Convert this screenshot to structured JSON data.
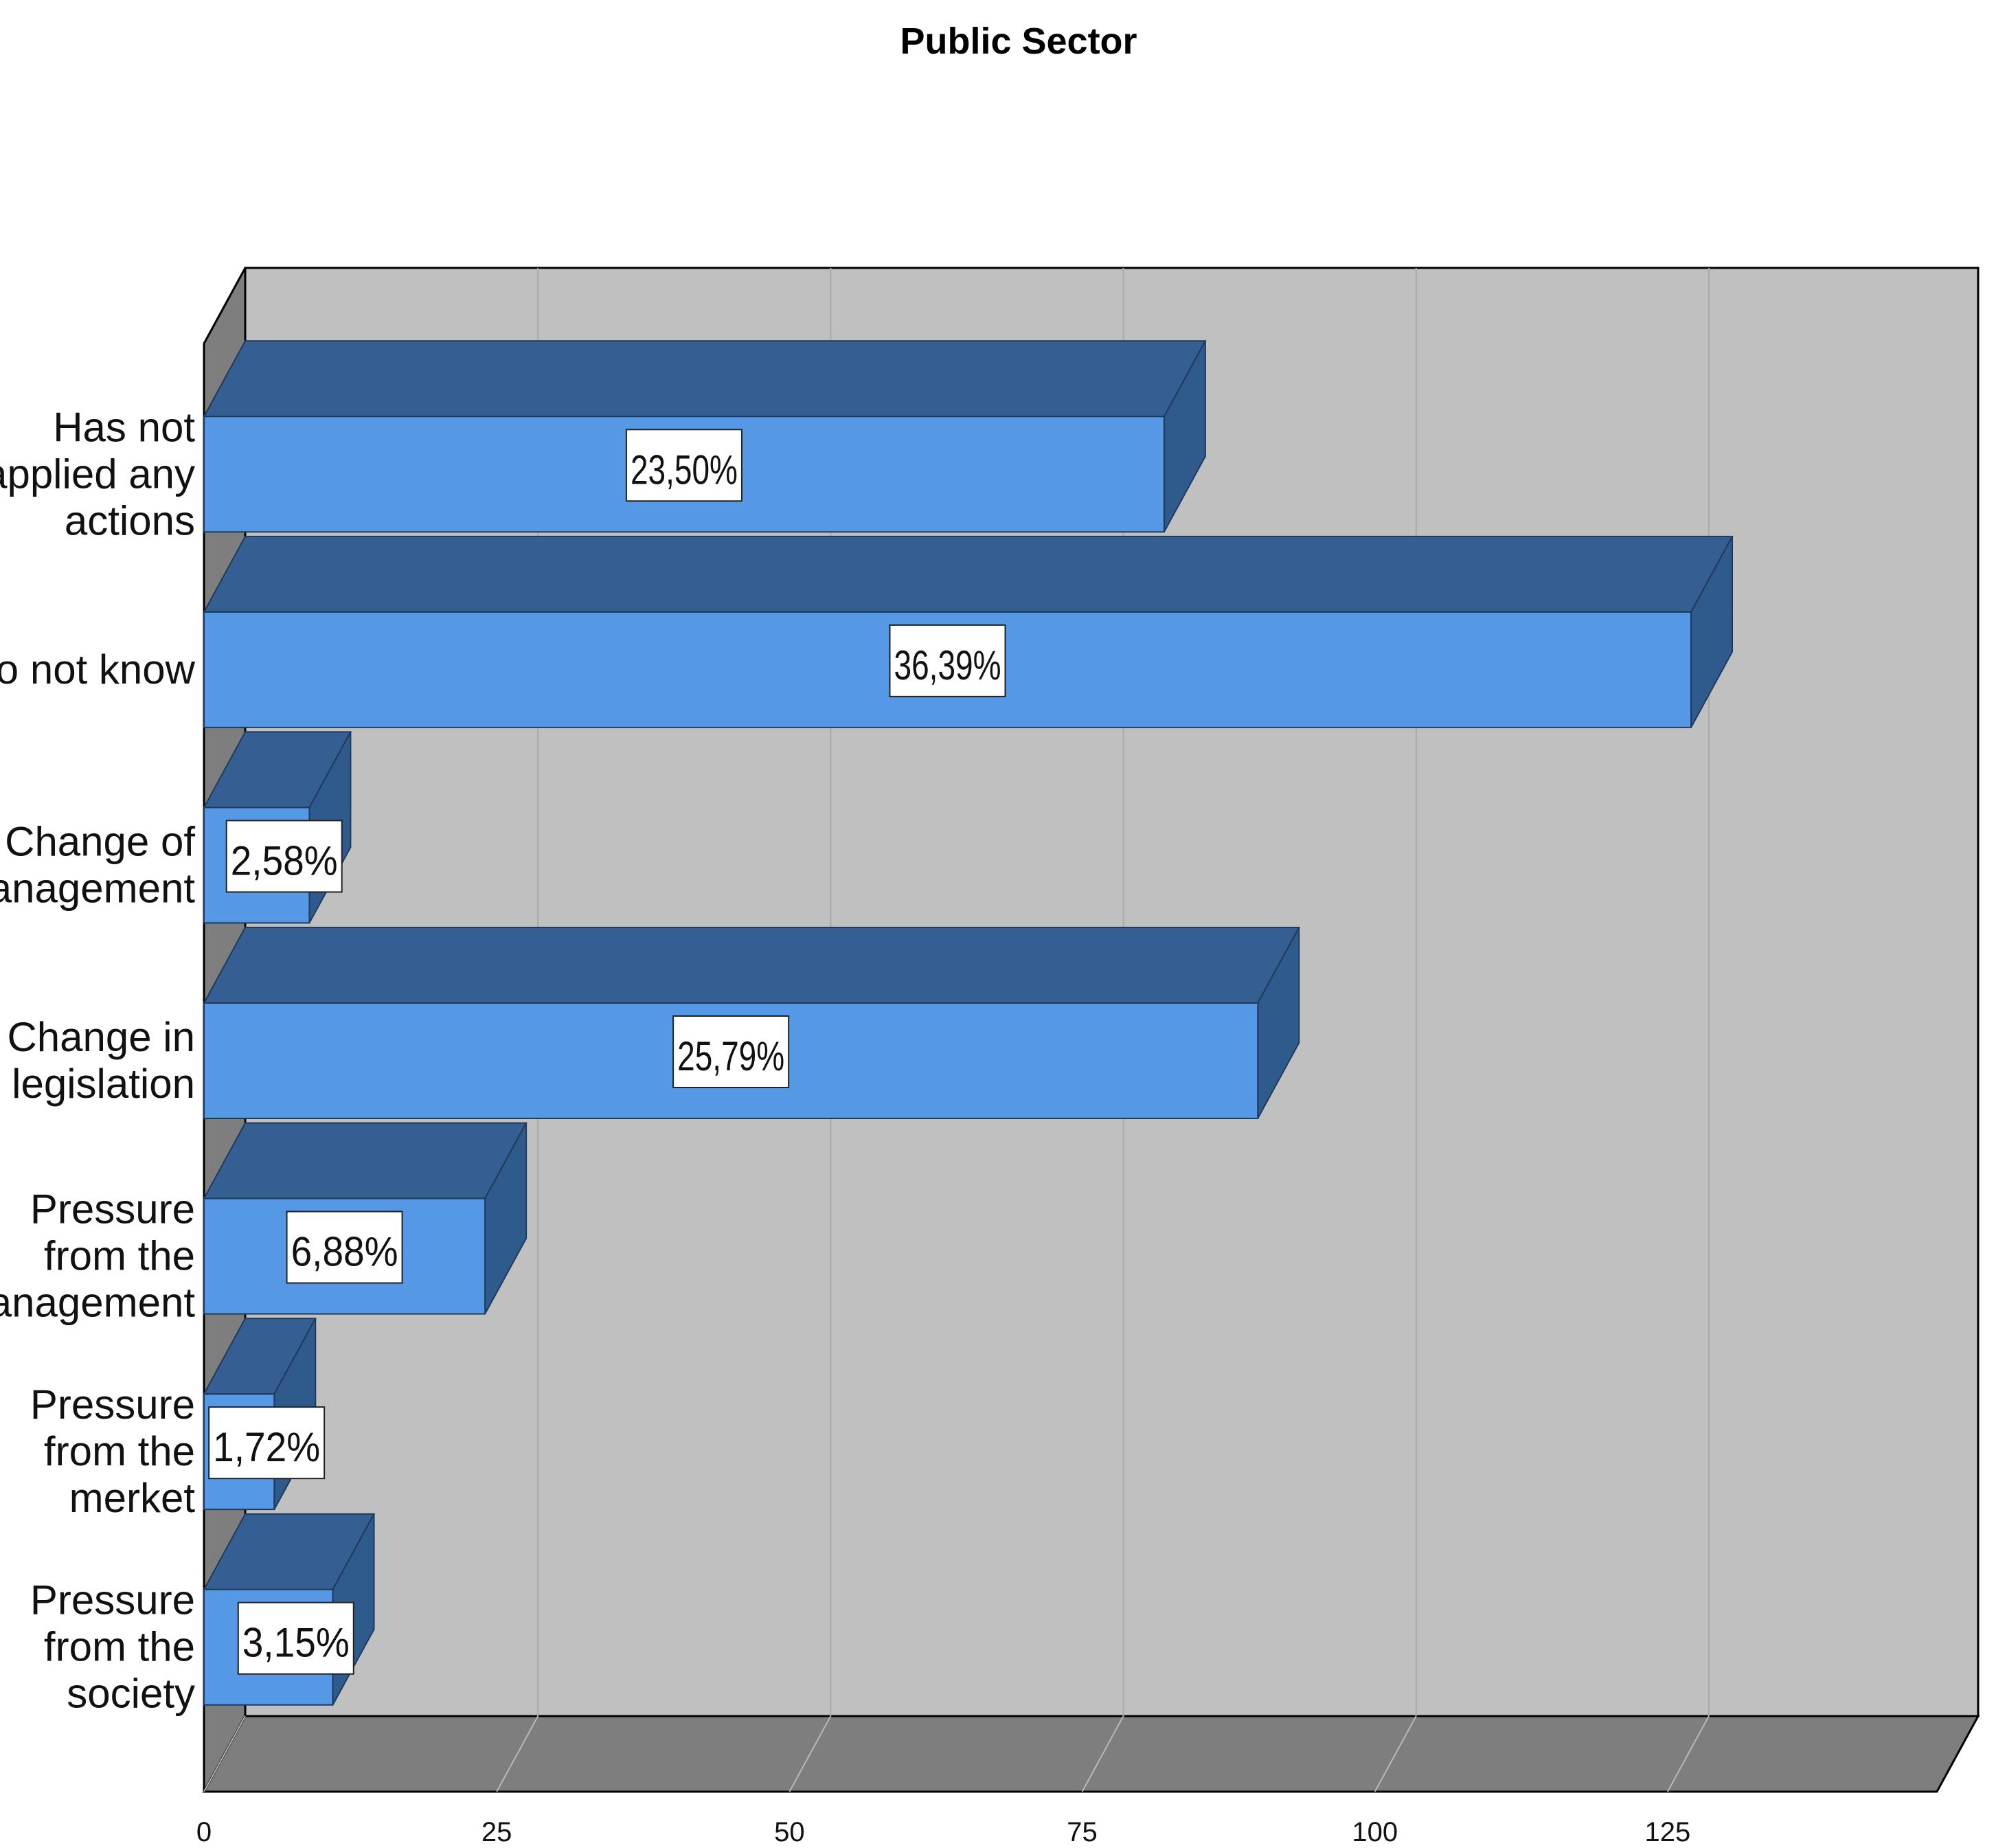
{
  "chart_data": {
    "type": "bar",
    "orientation": "horizontal",
    "style": "3d",
    "title": "Public Sector",
    "categories": [
      "Has not applied any actions",
      "I do not know",
      "Change of management",
      "Change in legislation",
      "Pressure from the management",
      "Pressure from the merket",
      "Pressure from the society"
    ],
    "category_lines": [
      [
        "Has not",
        "applied any",
        "actions"
      ],
      [
        "I do not know"
      ],
      [
        "Change of",
        "management"
      ],
      [
        "Change in",
        "legislation"
      ],
      [
        "Pressure",
        "from the",
        "management"
      ],
      [
        "Pressure",
        "from the",
        "merket"
      ],
      [
        "Pressure",
        "from the",
        "society"
      ]
    ],
    "values": [
      82,
      127,
      9,
      90,
      24,
      6,
      11
    ],
    "data_labels": [
      "23,50%",
      "36,39%",
      "2,58%",
      "25,79%",
      "6,88%",
      "1,72%",
      "3,15%"
    ],
    "xticks": [
      "0",
      "25",
      "50",
      "75",
      "100",
      "125"
    ],
    "xlim": [
      0,
      148
    ],
    "xlabel": "",
    "ylabel": "",
    "grid": true,
    "legend": "none",
    "colors": {
      "bar_front": "#5598E6",
      "bar_top": "#355E92",
      "bar_side": "#2F5A8C",
      "plot_back": "#C0C0C0",
      "plot_floor": "#7E7E7E",
      "plot_wall": "#7E7E7E",
      "grid": "#A9A9A9",
      "label_box": "#FFFFFF"
    }
  }
}
